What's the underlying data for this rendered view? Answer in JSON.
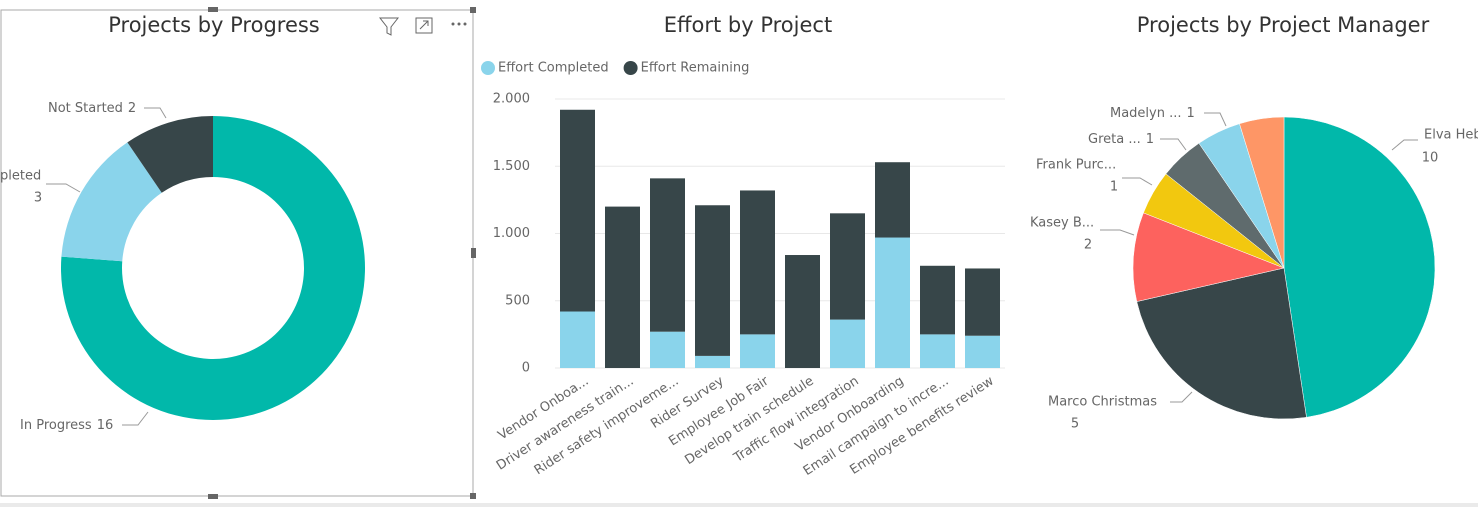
{
  "chart_data": [
    {
      "type": "donut",
      "title": "Projects by Progress",
      "categories": [
        "In Progress",
        "pleted",
        "Not Started"
      ],
      "values": [
        16,
        3,
        2
      ],
      "colors": [
        "#01b8aa",
        "#8ad4eb",
        "#374649"
      ]
    },
    {
      "type": "bar",
      "title": "Effort by Project",
      "stacked": true,
      "categories": [
        "Vendor Onboa...",
        "Driver awareness train...",
        "Rider safety improveme...",
        "Rider Survey",
        "Employee Job Fair",
        "Develop train schedule",
        "Traffic flow integration",
        "Vendor Onboarding",
        "Email campaign to incre...",
        "Employee benefits review"
      ],
      "series": [
        {
          "name": "Effort Completed",
          "color": "#8ad4eb",
          "values": [
            420,
            0,
            270,
            90,
            250,
            0,
            360,
            970,
            250,
            240
          ]
        },
        {
          "name": "Effort Remaining",
          "color": "#374649",
          "values": [
            1500,
            1200,
            1140,
            1120,
            1070,
            840,
            790,
            560,
            510,
            500
          ]
        }
      ],
      "ylim": [
        0,
        2000
      ],
      "yticks": [
        0,
        500,
        {
          "value": 1000,
          "label": "1.000"
        },
        {
          "value": 1500,
          "label": "1.500"
        },
        {
          "value": 2000,
          "label": "2.000"
        }
      ],
      "grid": true,
      "legend": "top-left"
    },
    {
      "type": "pie",
      "title": "Projects by Project Manager",
      "categories": [
        "Elva Heb",
        "Marco Christmas",
        "Kasey B...",
        "Frank Purc...",
        "Greta ...",
        "Madelyn ...",
        null
      ],
      "values": [
        10,
        5,
        2,
        1,
        1,
        1,
        1
      ],
      "colors": [
        "#01b8aa",
        "#374649",
        "#fd625e",
        "#f2c80f",
        "#5f6b6d",
        "#8ad4eb",
        "#fe9666"
      ]
    }
  ]
}
